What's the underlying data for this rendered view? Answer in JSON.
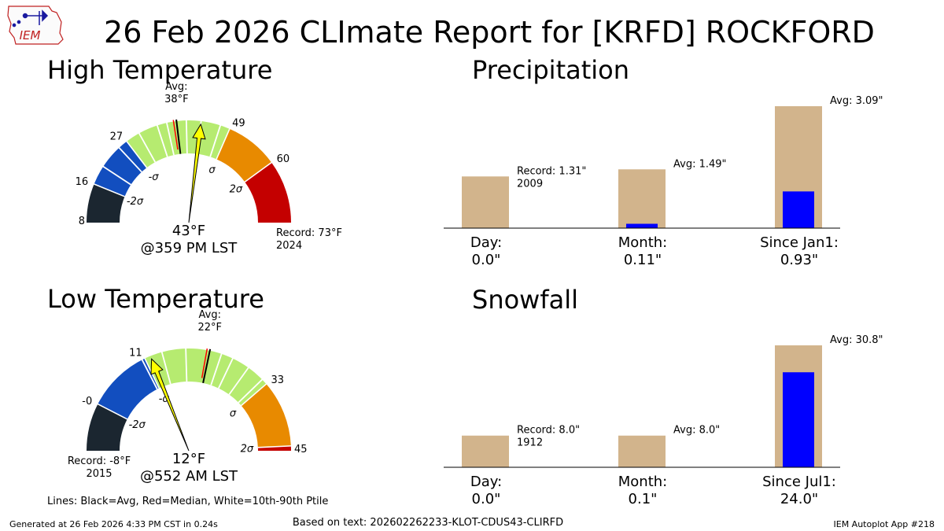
{
  "page": {
    "title": "26 Feb 2026 CLImate Report for [KRFD] ROCKFORD",
    "logo_text": "IEM",
    "lines_note": "Lines: Black=Avg, Red=Median, White=10th-90th Ptile",
    "generated": "Generated at 26 Feb 2026 4:33 PM CST in 0.24s",
    "based_on": "Based on text: 202602262233-KLOT-CDUS43-CLIRFD",
    "app_label": "IEM Autoplot App #218"
  },
  "colors": {
    "bar_bg": "#d2b48c",
    "bar_fg": "#0000ff",
    "band_black": "#1b2630",
    "band_blue": "#124ebf",
    "band_green": "#b6eb70",
    "band_orange": "#e88a00",
    "band_red": "#c40000",
    "needle": "#ffff00"
  },
  "chart_data": [
    {
      "type": "gauge",
      "title": "High Temperature",
      "min": 8,
      "max": 73,
      "avg": 38,
      "avg_label": "Avg:\n38°F",
      "median": 37.4,
      "value": 43,
      "value_label": "43°F",
      "time_label": "@359 PM LST",
      "record_label": "Record: 73°F\n2024",
      "record_side": "right",
      "bands": [
        {
          "from": 8,
          "to": 16,
          "color": "#1b2630"
        },
        {
          "from": 16,
          "to": 27,
          "color": "#124ebf"
        },
        {
          "from": 27,
          "to": 49,
          "color": "#b6eb70"
        },
        {
          "from": 49,
          "to": 60,
          "color": "#e88a00"
        },
        {
          "from": 60,
          "to": 73,
          "color": "#c40000"
        }
      ],
      "sigma_orange_start": 47.6,
      "orange_color": "#e88a00",
      "percentile_lines": [
        20,
        25,
        30,
        34,
        36,
        40,
        43,
        47
      ],
      "tick_labels": [
        {
          "v": 8,
          "t": "8"
        },
        {
          "v": 16,
          "t": "16"
        },
        {
          "v": 27,
          "t": "27"
        },
        {
          "v": 49,
          "t": "49"
        },
        {
          "v": 60,
          "t": "60"
        }
      ],
      "sigma_labels": [
        {
          "v": 16,
          "t": "-2σ"
        },
        {
          "v": 27,
          "t": "-σ"
        },
        {
          "v": 49,
          "t": "σ"
        },
        {
          "v": 60,
          "t": "2σ"
        }
      ]
    },
    {
      "type": "gauge",
      "title": "Low Temperature",
      "min": -8,
      "max": 45,
      "avg": 22,
      "avg_label": "Avg:\n22°F",
      "median": 21.5,
      "value": 12,
      "value_label": "12°F",
      "time_label": "@552 AM LST",
      "record_label": "Record: -8°F\n2015",
      "record_side": "left",
      "bands": [
        {
          "from": -8,
          "to": 0,
          "color": "#1b2630"
        },
        {
          "from": 0,
          "to": 11,
          "color": "#124ebf"
        },
        {
          "from": 11,
          "to": 33,
          "color": "#b6eb70"
        },
        {
          "from": 33,
          "to": 44.2,
          "color": "#e88a00"
        },
        {
          "from": 44.2,
          "to": 45,
          "color": "#c40000"
        }
      ],
      "sigma_orange_start": 33,
      "orange_color": "#e88a00",
      "percentile_lines": [
        10.5,
        14,
        18,
        24,
        26,
        29,
        32
      ],
      "tick_labels": [
        {
          "v": 0,
          "t": "-0"
        },
        {
          "v": 11,
          "t": "11"
        },
        {
          "v": 33,
          "t": "33"
        },
        {
          "v": 45,
          "t": "45"
        }
      ],
      "sigma_labels": [
        {
          "v": 0,
          "t": "-2σ"
        },
        {
          "v": 11,
          "t": "-σ"
        },
        {
          "v": 33,
          "t": "σ"
        },
        {
          "v": 44.2,
          "t": "2σ"
        }
      ]
    },
    {
      "type": "bar",
      "title": "Precipitation",
      "categories": [
        "Day:\n0.0\"",
        "Month:\n0.11\"",
        "Since Jan1:\n0.93\""
      ],
      "values": [
        0.0,
        0.11,
        0.93
      ],
      "reference": [
        1.31,
        1.49,
        3.09
      ],
      "annotations": [
        "Record: 1.31\"\n2009",
        "Avg: 1.49\"",
        "Avg: 3.09\""
      ]
    },
    {
      "type": "bar",
      "title": "Snowfall",
      "categories": [
        "Day:\n0.0\"",
        "Month:\n0.1\"",
        "Since Jul1:\n24.0\""
      ],
      "values": [
        0.0,
        0.1,
        24.0
      ],
      "reference": [
        8.0,
        8.0,
        30.8
      ],
      "annotations": [
        "Record: 8.0\"\n1912",
        "Avg: 8.0\"",
        "Avg: 30.8\""
      ]
    }
  ]
}
